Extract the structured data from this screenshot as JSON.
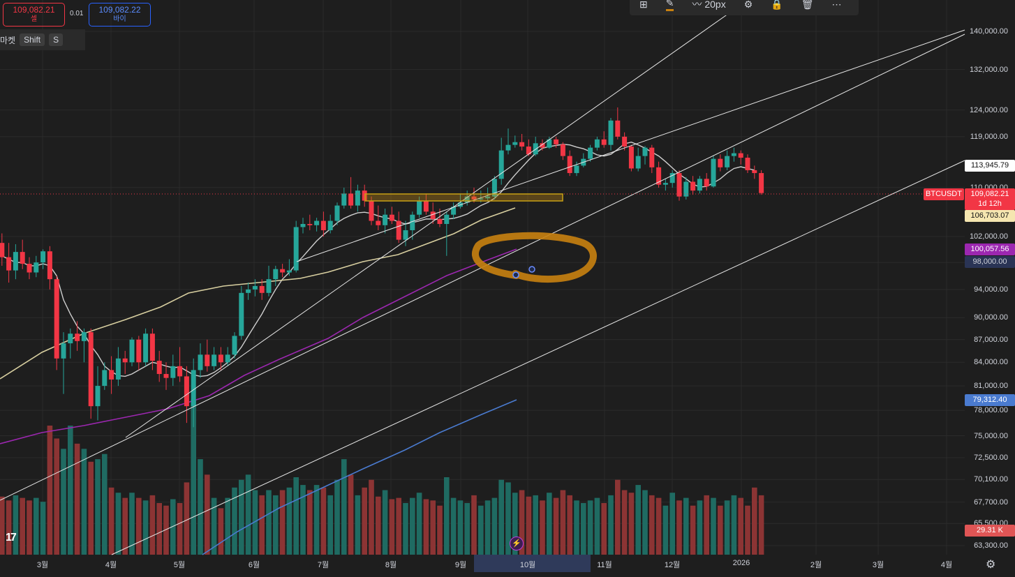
{
  "order_panel": {
    "sell_price": "109,082.21",
    "sell_label": "셀",
    "spread": "0.01",
    "buy_price": "109,082.22",
    "buy_label": "바이"
  },
  "market_row": {
    "label": "마켓",
    "shift_key": "Shift",
    "s_key": "S"
  },
  "toolbar": {
    "size_label": "20px",
    "icons": [
      "add-alert-icon",
      "pencil-icon",
      "brush-icon",
      "settings-icon",
      "lock-icon",
      "trash-icon",
      "more-icon"
    ]
  },
  "colors": {
    "background": "#1e1e1e",
    "up": "#26a69a",
    "down": "#f23645",
    "ma_short": "#cfcfcf",
    "ma_mid": "#d8cfa0",
    "ma_purple": "#9c27b0",
    "ma_blue": "#4a7bd0",
    "highlight_orange": "#c8810f"
  },
  "chart_data": {
    "type": "candlestick",
    "symbol": "BTCUSDT",
    "interval": "1d",
    "y_scale": "log",
    "price_axis_ticks": [
      140000,
      132000,
      124000,
      119000,
      110000,
      102000,
      98000,
      94000,
      90000,
      87000,
      84000,
      81000,
      78000,
      75000,
      72500,
      70100,
      67700,
      65500,
      63300
    ],
    "price_axis_tick_labels": [
      "140,000.00",
      "132,000.00",
      "124,000.00",
      "119,000.00",
      "110,000.00",
      "102,000.00",
      "98,000.00",
      "94,000.00",
      "90,000.00",
      "87,000.00",
      "84,000.00",
      "81,000.00",
      "78,000.00",
      "75,000.00",
      "72,500.00",
      "70,100.00",
      "67,700.00",
      "65,500.00",
      "63,300.00"
    ],
    "time_axis_labels": [
      "3월",
      "4월",
      "5월",
      "6월",
      "7월",
      "8월",
      "9월",
      "10월",
      "11월",
      "12월",
      "2026",
      "2월",
      "3월",
      "4월"
    ],
    "price_labels": {
      "line_level": "113,945.79",
      "symbol": "BTCUSDT",
      "last_price": "109,082.21",
      "countdown": "1d 12h",
      "ma_mid": "106,703.07",
      "ma_purple": "100,057.56",
      "ma_purple_alt": "98,000.00",
      "ma_blue": "79,312.40",
      "volume": "29.31 K"
    },
    "candles": [
      [
        101500,
        101000,
        103000,
        98500
      ],
      [
        101000,
        98800,
        102500,
        97500
      ],
      [
        98800,
        96800,
        101000,
        95000
      ],
      [
        96800,
        99600,
        100800,
        95500
      ],
      [
        99600,
        97800,
        101500,
        97000
      ],
      [
        97800,
        96500,
        98800,
        95500
      ],
      [
        96500,
        98000,
        99000,
        95800
      ],
      [
        98000,
        99700,
        100000,
        97000
      ],
      [
        99700,
        95500,
        100500,
        94000
      ],
      [
        95500,
        84500,
        96000,
        83000
      ],
      [
        84500,
        86500,
        88000,
        80000
      ],
      [
        86500,
        87800,
        88500,
        84500
      ],
      [
        87800,
        86800,
        89500,
        85500
      ],
      [
        86800,
        88000,
        88500,
        84000
      ],
      [
        88000,
        78500,
        88500,
        77000
      ],
      [
        78500,
        81000,
        83500,
        76800
      ],
      [
        81000,
        83000,
        84000,
        80500
      ],
      [
        83000,
        81800,
        84800,
        80000
      ],
      [
        81800,
        84500,
        86000,
        81000
      ],
      [
        84500,
        84000,
        85500,
        82500
      ],
      [
        84000,
        87000,
        87300,
        83500
      ],
      [
        87000,
        84000,
        87500,
        83000
      ],
      [
        84000,
        87800,
        88500,
        83500
      ],
      [
        87800,
        84200,
        88500,
        83000
      ],
      [
        84200,
        82500,
        85500,
        81500
      ],
      [
        82500,
        82000,
        84000,
        80500
      ],
      [
        82000,
        83500,
        85000,
        81000
      ],
      [
        83500,
        82200,
        86000,
        81500
      ],
      [
        82200,
        78500,
        83500,
        76500
      ],
      [
        78500,
        83000,
        84500,
        76000
      ],
      [
        83000,
        85000,
        86500,
        82000
      ],
      [
        85000,
        83500,
        87000,
        82800
      ],
      [
        83500,
        85000,
        86000,
        83000
      ],
      [
        85000,
        84000,
        86000,
        83000
      ],
      [
        84000,
        85000,
        86000,
        83500
      ],
      [
        85000,
        87500,
        88000,
        84500
      ],
      [
        87500,
        93500,
        94500,
        87000
      ],
      [
        93500,
        94000,
        95000,
        92500
      ],
      [
        94000,
        94500,
        95500,
        93000
      ],
      [
        94500,
        93500,
        95500,
        92500
      ],
      [
        93500,
        95500,
        97500,
        93000
      ],
      [
        95500,
        97000,
        97500,
        94500
      ],
      [
        97000,
        96500,
        97800,
        95800
      ],
      [
        96500,
        96800,
        98500,
        96000
      ],
      [
        96800,
        103500,
        104500,
        96500
      ],
      [
        103500,
        104000,
        105000,
        102500
      ],
      [
        104000,
        103800,
        105500,
        103000
      ],
      [
        103800,
        104500,
        105000,
        102800
      ],
      [
        104500,
        103000,
        106000,
        102000
      ],
      [
        103000,
        104500,
        105500,
        102500
      ],
      [
        104500,
        107000,
        107500,
        103800
      ],
      [
        107000,
        109000,
        110000,
        106500
      ],
      [
        109000,
        107000,
        111800,
        106500
      ],
      [
        107000,
        109500,
        110500,
        106000
      ],
      [
        109500,
        107800,
        110500,
        106800
      ],
      [
        107800,
        104500,
        108500,
        103800
      ],
      [
        104500,
        103800,
        107000,
        103000
      ],
      [
        103800,
        105500,
        106500,
        102500
      ],
      [
        105500,
        104500,
        106800,
        104000
      ],
      [
        104500,
        101500,
        106000,
        101000
      ],
      [
        101500,
        103000,
        104500,
        100500
      ],
      [
        103000,
        105500,
        106000,
        101500
      ],
      [
        105500,
        107800,
        108500,
        105000
      ],
      [
        107800,
        106000,
        109000,
        105500
      ],
      [
        106000,
        104800,
        107500,
        104000
      ],
      [
        104800,
        104000,
        106500,
        103500
      ],
      [
        104000,
        105500,
        106000,
        99000
      ],
      [
        105500,
        106800,
        107500,
        104800
      ],
      [
        106800,
        107500,
        109000,
        106500
      ],
      [
        107500,
        108500,
        109500,
        107000
      ],
      [
        108500,
        108000,
        110000,
        107500
      ],
      [
        108000,
        108200,
        109500,
        107500
      ],
      [
        108200,
        108500,
        110000,
        107800
      ],
      [
        108500,
        111500,
        112000,
        108000
      ],
      [
        111500,
        116500,
        118800,
        110500
      ],
      [
        116500,
        117500,
        120500,
        115800
      ],
      [
        117500,
        118000,
        119200,
        117000
      ],
      [
        118000,
        117200,
        119500,
        116500
      ],
      [
        117200,
        115800,
        118500,
        115500
      ],
      [
        115800,
        117800,
        119000,
        115500
      ],
      [
        117800,
        117000,
        118500,
        116500
      ],
      [
        117000,
        118500,
        119000,
        116800
      ],
      [
        118500,
        117600,
        119000,
        117000
      ],
      [
        117600,
        115500,
        118000,
        114800
      ],
      [
        115500,
        112500,
        116500,
        112000
      ],
      [
        112500,
        113800,
        114500,
        112000
      ],
      [
        113800,
        115000,
        116000,
        113500
      ],
      [
        115000,
        117000,
        117500,
        114500
      ],
      [
        117000,
        118500,
        119000,
        116500
      ],
      [
        118500,
        117500,
        120000,
        117000
      ],
      [
        117500,
        122000,
        122500,
        116500
      ],
      [
        122000,
        119000,
        124500,
        118500
      ],
      [
        119000,
        117200,
        119800,
        116500
      ],
      [
        117200,
        113300,
        117500,
        112800
      ],
      [
        113300,
        115500,
        117000,
        112800
      ],
      [
        115500,
        117000,
        117300,
        114000
      ],
      [
        117000,
        113500,
        117500,
        112500
      ],
      [
        113500,
        110500,
        114500,
        110000
      ],
      [
        110500,
        110800,
        111500,
        109500
      ],
      [
        110800,
        112500,
        113000,
        110000
      ],
      [
        112500,
        108500,
        113000,
        107800
      ],
      [
        108500,
        111000,
        111800,
        108000
      ],
      [
        111000,
        109500,
        112000,
        108800
      ],
      [
        109500,
        111500,
        112000,
        109000
      ],
      [
        111500,
        110200,
        112500,
        109500
      ],
      [
        110200,
        115000,
        115500,
        110000
      ],
      [
        115000,
        113500,
        115800,
        112800
      ],
      [
        113500,
        115500,
        116500,
        113000
      ],
      [
        115500,
        116000,
        117000,
        114500
      ],
      [
        116000,
        115200,
        116500,
        114000
      ],
      [
        115200,
        113000,
        115800,
        112500
      ],
      [
        113000,
        112500,
        113800,
        111500
      ],
      [
        112500,
        109082,
        113000,
        108800
      ]
    ],
    "volumes": [
      0.55,
      0.45,
      0.42,
      0.46,
      0.44,
      0.42,
      0.44,
      0.41,
      1.0,
      0.9,
      0.82,
      1.0,
      0.86,
      0.82,
      0.72,
      0.74,
      0.78,
      0.52,
      0.48,
      0.44,
      0.48,
      0.44,
      0.42,
      0.46,
      0.4,
      0.38,
      0.43,
      0.4,
      0.56,
      1.2,
      0.74,
      0.62,
      0.44,
      0.36,
      0.44,
      0.52,
      0.58,
      0.62,
      0.5,
      0.46,
      0.5,
      0.46,
      0.5,
      0.52,
      0.6,
      0.54,
      0.5,
      0.54,
      0.52,
      0.46,
      0.58,
      0.74,
      0.62,
      0.46,
      0.52,
      0.58,
      0.45,
      0.5,
      0.43,
      0.44,
      0.4,
      0.44,
      0.48,
      0.43,
      0.42,
      0.38,
      0.6,
      0.44,
      0.42,
      0.4,
      0.46,
      0.38,
      0.42,
      0.44,
      0.58,
      0.56,
      0.48,
      0.5,
      0.45,
      0.46,
      0.42,
      0.48,
      0.44,
      0.5,
      0.46,
      0.42,
      0.4,
      0.42,
      0.44,
      0.4,
      0.46,
      0.58,
      0.5,
      0.48,
      0.54,
      0.5,
      0.46,
      0.44,
      0.38,
      0.48,
      0.42,
      0.44,
      0.38,
      0.42,
      0.46,
      0.44,
      0.38,
      0.42,
      0.46,
      0.44,
      0.38,
      0.52,
      0.46
    ],
    "ma_short": [
      100000,
      99000,
      98500,
      98000,
      98000,
      97500,
      97500,
      97800,
      97500,
      96000,
      92500,
      90500,
      88800,
      87800,
      86200,
      85000,
      83500,
      82800,
      82300,
      82200,
      82500,
      83000,
      83500,
      84000,
      83800,
      83500,
      83300,
      83400,
      82900,
      82400,
      82200,
      82300,
      82700,
      83300,
      84000,
      84800,
      86000,
      87500,
      89000,
      90500,
      92300,
      94000,
      95500,
      96500,
      97800,
      98900,
      100100,
      101300,
      102300,
      103200,
      104200,
      104900,
      105400,
      105800,
      105900,
      105700,
      105300,
      105000,
      104800,
      104300,
      104000,
      104200,
      104500,
      104800,
      104800,
      104700,
      104800,
      104900,
      105200,
      105600,
      106300,
      107000,
      107500,
      108200,
      109300,
      110800,
      112200,
      113500,
      114800,
      116000,
      116900,
      117200,
      117400,
      117600,
      117500,
      117100,
      116800,
      116300,
      115700,
      115500,
      115800,
      116700,
      117700,
      118000,
      117500,
      116900,
      116200,
      115500,
      114500,
      113400,
      112300,
      111500,
      110600,
      110100,
      110200,
      110800,
      111500,
      112500,
      113300,
      113600,
      113300,
      113000
    ]
  }
}
